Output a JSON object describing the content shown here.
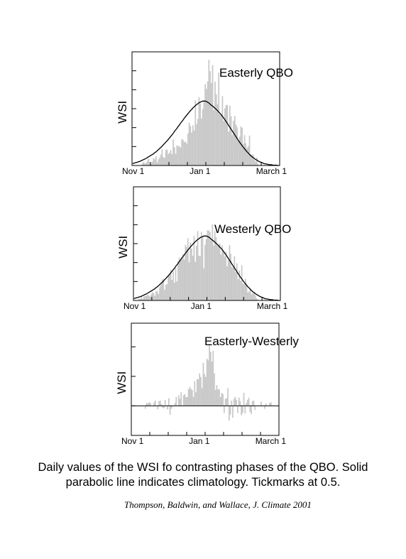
{
  "chart_data": [
    {
      "type": "bar",
      "title": "Easterly QBO",
      "ylabel": "WSI",
      "x_ticks": [
        "Nov 1",
        "Jan 1",
        "March 1"
      ],
      "tick_interval": 0.5,
      "ylim": [
        0,
        3.0
      ],
      "days": 120,
      "series": [
        {
          "kind": "bar",
          "values": [
            0.0,
            0.0,
            0.0,
            0.0,
            0.0,
            0.0,
            0.0,
            0.0,
            0.06,
            0.1,
            0.05,
            0.07,
            0.12,
            0.18,
            0.08,
            0.05,
            0.1,
            0.2,
            0.16,
            0.24,
            0.08,
            0.16,
            0.21,
            0.29,
            0.43,
            0.22,
            0.2,
            0.41,
            0.42,
            0.31,
            0.33,
            0.41,
            0.3,
            0.69,
            0.48,
            0.31,
            0.53,
            0.51,
            0.51,
            0.47,
            0.69,
            0.68,
            0.62,
            0.63,
            0.58,
            0.85,
            1.13,
            1.04,
            0.87,
            1.06,
            0.92,
            1.72,
            1.09,
            1.23,
            1.8,
            1.64,
            1.24,
            1.49,
            1.71,
            2.15,
            2.02,
            2.22,
            2.79,
            2.49,
            2.18,
            2.65,
            1.46,
            2.21,
            1.88,
            1.61,
            2.45,
            1.35,
            1.32,
            1.83,
            1.18,
            1.51,
            1.6,
            1.59,
            0.89,
            1.58,
            1.3,
            0.81,
            1.18,
            1.31,
            1.08,
            1.01,
            0.64,
            0.76,
            1.03,
            1.0,
            0.57,
            0.8,
            0.59,
            0.46,
            0.51,
            0.79,
            0.3,
            0.28,
            0.29,
            0.15,
            0.1,
            0.21,
            0.03,
            0.0,
            0.0,
            0.0,
            0.0,
            0.0,
            0.0,
            0.0,
            0.0,
            0.0,
            0.0,
            0.0,
            0.0,
            0.0,
            0.0,
            0.0,
            0.0,
            0.0
          ]
        },
        {
          "kind": "climatology",
          "values": [
            0.05,
            0.06,
            0.07,
            0.08,
            0.09,
            0.1,
            0.11,
            0.13,
            0.14,
            0.16,
            0.17,
            0.19,
            0.21,
            0.23,
            0.25,
            0.27,
            0.29,
            0.31,
            0.34,
            0.36,
            0.39,
            0.42,
            0.45,
            0.48,
            0.51,
            0.55,
            0.58,
            0.62,
            0.65,
            0.69,
            0.73,
            0.77,
            0.81,
            0.85,
            0.9,
            0.94,
            0.98,
            1.03,
            1.07,
            1.12,
            1.16,
            1.2,
            1.25,
            1.29,
            1.33,
            1.37,
            1.41,
            1.45,
            1.48,
            1.52,
            1.55,
            1.58,
            1.61,
            1.63,
            1.66,
            1.67,
            1.69,
            1.7,
            1.7,
            1.7,
            1.69,
            1.67,
            1.65,
            1.62,
            1.59,
            1.57,
            1.54,
            1.51,
            1.48,
            1.45,
            1.41,
            1.38,
            1.34,
            1.3,
            1.25,
            1.21,
            1.16,
            1.11,
            1.06,
            1.01,
            0.96,
            0.91,
            0.86,
            0.81,
            0.76,
            0.71,
            0.66,
            0.61,
            0.57,
            0.52,
            0.48,
            0.44,
            0.4,
            0.36,
            0.33,
            0.29,
            0.26,
            0.23,
            0.21,
            0.18,
            0.16,
            0.14,
            0.12,
            0.1,
            0.09,
            0.08,
            0.06,
            0.05,
            0.04,
            0.04,
            0.03,
            0.02,
            0.02,
            0.02,
            0.01,
            0.01,
            0.01,
            0.01,
            0.0,
            0.0
          ]
        }
      ]
    },
    {
      "type": "bar",
      "title": "Westerly QBO",
      "ylabel": "WSI",
      "x_ticks": [
        "Nov 1",
        "Jan 1",
        "March 1"
      ],
      "tick_interval": 0.5,
      "ylim": [
        0,
        3.0
      ],
      "days": 120,
      "series": [
        {
          "kind": "bar",
          "values": [
            0.0,
            0.0,
            0.0,
            0.0,
            0.05,
            0.03,
            0.11,
            0.04,
            0.1,
            0.12,
            0.12,
            0.15,
            0.13,
            0.1,
            0.16,
            0.22,
            0.19,
            0.12,
            0.25,
            0.24,
            0.17,
            0.35,
            0.41,
            0.55,
            0.56,
            0.28,
            0.41,
            0.43,
            0.67,
            0.67,
            0.81,
            0.54,
            0.77,
            0.47,
            0.86,
            0.5,
            1.04,
            1.13,
            1.07,
            1.09,
            1.23,
            1.08,
            1.47,
            1.41,
            1.64,
            1.01,
            1.53,
            1.37,
            1.18,
            1.7,
            1.02,
            1.44,
            1.83,
            1.18,
            1.17,
            1.81,
            1.68,
            0.85,
            1.47,
            1.62,
            1.85,
            1.85,
            1.81,
            1.58,
            2.01,
            1.45,
            1.83,
            1.67,
            1.48,
            1.46,
            1.5,
            1.21,
            1.45,
            1.29,
            1.16,
            1.29,
            0.9,
            1.06,
            1.46,
            1.23,
            0.88,
            0.87,
            1.17,
            0.75,
            0.98,
            0.56,
            0.79,
            0.52,
            0.93,
            0.45,
            0.44,
            0.57,
            0.42,
            0.21,
            0.24,
            0.33,
            0.16,
            0.2,
            0.2,
            0.14,
            0.06,
            0.03,
            0.0,
            0.0,
            0.0,
            0.0,
            0.0,
            0.0,
            0.0,
            0.0,
            0.0,
            0.0,
            0.0,
            0.0,
            0.0,
            0.0,
            0.0,
            0.0,
            0.0,
            0.0
          ]
        },
        {
          "kind": "climatology",
          "values": [
            0.05,
            0.06,
            0.07,
            0.08,
            0.09,
            0.1,
            0.11,
            0.13,
            0.14,
            0.16,
            0.17,
            0.19,
            0.21,
            0.23,
            0.25,
            0.27,
            0.29,
            0.31,
            0.34,
            0.36,
            0.39,
            0.42,
            0.45,
            0.48,
            0.51,
            0.55,
            0.58,
            0.62,
            0.65,
            0.69,
            0.73,
            0.77,
            0.81,
            0.85,
            0.9,
            0.94,
            0.98,
            1.03,
            1.07,
            1.12,
            1.16,
            1.2,
            1.25,
            1.29,
            1.33,
            1.37,
            1.41,
            1.45,
            1.48,
            1.52,
            1.55,
            1.58,
            1.61,
            1.63,
            1.66,
            1.67,
            1.69,
            1.7,
            1.7,
            1.7,
            1.69,
            1.67,
            1.65,
            1.62,
            1.59,
            1.57,
            1.54,
            1.51,
            1.48,
            1.45,
            1.41,
            1.38,
            1.34,
            1.3,
            1.25,
            1.21,
            1.16,
            1.11,
            1.06,
            1.01,
            0.96,
            0.91,
            0.86,
            0.81,
            0.76,
            0.71,
            0.66,
            0.61,
            0.57,
            0.52,
            0.48,
            0.44,
            0.4,
            0.36,
            0.33,
            0.29,
            0.26,
            0.23,
            0.21,
            0.18,
            0.16,
            0.14,
            0.12,
            0.1,
            0.09,
            0.08,
            0.06,
            0.05,
            0.04,
            0.04,
            0.03,
            0.02,
            0.02,
            0.02,
            0.01,
            0.01,
            0.01,
            0.01,
            0.0,
            0.0
          ]
        }
      ]
    },
    {
      "type": "bar",
      "title": "Easterly-Westerly",
      "ylabel": "WSI",
      "x_ticks": [
        "Nov 1",
        "Jan 1",
        "March 1"
      ],
      "tick_interval": 0.5,
      "ylim": [
        -0.5,
        1.4
      ],
      "days": 120,
      "series": [
        {
          "kind": "bar",
          "values": [
            0.0,
            0.0,
            0.0,
            0.0,
            0.0,
            0.0,
            0.0,
            0.0,
            0.0,
            0.0,
            0.0,
            -0.05,
            0.05,
            0.04,
            0.06,
            0.05,
            0.0,
            0.0,
            0.06,
            0.09,
            0.0,
            -0.06,
            0.08,
            0.09,
            0.03,
            -0.03,
            -0.04,
            0.1,
            0.0,
            -0.06,
            0.13,
            -0.15,
            -0.05,
            -0.02,
            0.0,
            0.05,
            0.15,
            0.0,
            0.18,
            0.12,
            0.23,
            0.0,
            0.18,
            0.2,
            0.15,
            0.15,
            0.28,
            0.32,
            0.29,
            0.27,
            0.15,
            0.42,
            0.23,
            0.45,
            0.45,
            0.55,
            0.49,
            0.3,
            0.73,
            0.54,
            0.49,
            0.8,
            0.77,
            1.05,
            0.91,
            0.75,
            0.93,
            0.55,
            0.27,
            0.35,
            0.28,
            0.28,
            0.15,
            0.22,
            0.2,
            -0.12,
            0.12,
            0.13,
            0.3,
            -0.25,
            -0.15,
            0.09,
            -0.2,
            0.12,
            0.15,
            0.1,
            -0.12,
            0.14,
            0.08,
            -0.16,
            -0.12,
            0.22,
            -0.13,
            0.05,
            0.1,
            0.14,
            -0.1,
            -0.14,
            0.08,
            0.09,
            -0.07,
            0.0,
            0.0,
            0.0,
            0.0,
            0.07,
            0.0,
            0.0,
            -0.05,
            0.04,
            0.0,
            0.0,
            0.05,
            0.06,
            0.0,
            0.0,
            0.0,
            0.0,
            0.0,
            0.0
          ]
        }
      ]
    }
  ],
  "caption": {
    "line1": "Daily values of the WSI fo contrasting phases of the QBO. Solid",
    "line2": "parabolic line indicates climatology. Tickmarks at 0.5."
  },
  "citation": "Thompson, Baldwin, and Wallace, J. Climate 2001",
  "colors": {
    "bars": "#c8c8c8",
    "line": "#000000",
    "frame": "#000000"
  }
}
